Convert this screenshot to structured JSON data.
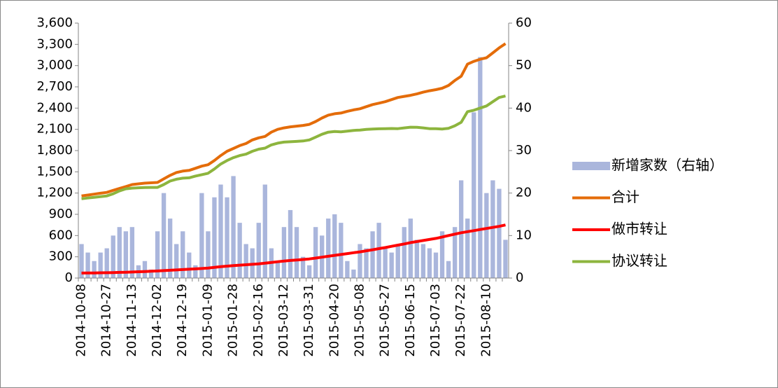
{
  "chart_data": {
    "type": "combo",
    "categories": [
      "2014-10-08",
      null,
      null,
      null,
      "2014-10-27",
      null,
      null,
      null,
      "2014-11-13",
      null,
      null,
      null,
      "2014-12-02",
      null,
      null,
      null,
      "2014-12-19",
      null,
      null,
      null,
      "2015-01-09",
      null,
      null,
      null,
      "2015-01-28",
      null,
      null,
      null,
      "2015-02-16",
      null,
      null,
      null,
      "2015-03-12",
      null,
      null,
      null,
      "2015-03-31",
      null,
      null,
      null,
      "2015-04-20",
      null,
      null,
      null,
      "2015-05-08",
      null,
      null,
      null,
      "2015-05-27",
      null,
      null,
      null,
      "2015-06-15",
      null,
      null,
      null,
      "2015-07-03",
      null,
      null,
      null,
      "2015-07-22",
      null,
      null,
      null,
      "2015-08-10",
      null,
      null,
      null
    ],
    "series": [
      {
        "name": "新增家数（右轴）",
        "type": "bar",
        "axis": "y2",
        "color": "#aab6dc",
        "values": [
          8,
          6,
          4,
          6,
          7,
          10,
          12,
          11,
          12,
          3,
          4,
          2,
          11,
          20,
          14,
          8,
          11,
          6,
          3,
          20,
          11,
          19,
          22,
          19,
          24,
          13,
          8,
          7,
          13,
          22,
          7,
          4,
          12,
          16,
          12,
          5,
          3,
          12,
          10,
          14,
          15,
          13,
          4,
          2,
          8,
          7,
          11,
          13,
          7,
          6,
          8,
          12,
          14,
          9,
          8,
          7,
          6,
          11,
          4,
          12,
          23,
          14,
          39,
          52,
          20,
          23,
          21,
          9
        ]
      },
      {
        "name": "合计",
        "type": "line",
        "color": "#e46c0a",
        "values": [
          1160,
          1172,
          1185,
          1198,
          1210,
          1238,
          1265,
          1292,
          1320,
          1330,
          1340,
          1345,
          1350,
          1400,
          1450,
          1490,
          1510,
          1520,
          1550,
          1580,
          1600,
          1660,
          1730,
          1790,
          1830,
          1870,
          1900,
          1950,
          1980,
          2000,
          2060,
          2100,
          2120,
          2135,
          2145,
          2155,
          2170,
          2210,
          2260,
          2300,
          2320,
          2330,
          2355,
          2375,
          2390,
          2420,
          2450,
          2470,
          2490,
          2520,
          2550,
          2565,
          2580,
          2600,
          2625,
          2645,
          2660,
          2680,
          2720,
          2790,
          2850,
          3020,
          3060,
          3090,
          3110,
          3180,
          3250,
          3310
        ]
      },
      {
        "name": "做市转让",
        "type": "line",
        "color": "#ff0000",
        "values": [
          70,
          71,
          72,
          74,
          75,
          77,
          80,
          82,
          85,
          89,
          92,
          96,
          100,
          105,
          110,
          115,
          120,
          125,
          130,
          135,
          140,
          150,
          160,
          168,
          175,
          182,
          188,
          194,
          200,
          210,
          220,
          230,
          240,
          248,
          255,
          262,
          270,
          282,
          295,
          308,
          320,
          332,
          345,
          358,
          370,
          385,
          400,
          415,
          430,
          448,
          465,
          482,
          500,
          515,
          530,
          545,
          560,
          580,
          600,
          620,
          640,
          655,
          670,
          685,
          700,
          715,
          730,
          750
        ]
      },
      {
        "name": "协议转让",
        "type": "line",
        "color": "#8db53e",
        "values": [
          1120,
          1130,
          1140,
          1150,
          1160,
          1190,
          1230,
          1260,
          1270,
          1275,
          1278,
          1280,
          1280,
          1320,
          1370,
          1395,
          1410,
          1415,
          1440,
          1460,
          1480,
          1540,
          1610,
          1660,
          1700,
          1730,
          1750,
          1790,
          1820,
          1835,
          1880,
          1905,
          1920,
          1925,
          1930,
          1935,
          1950,
          1990,
          2030,
          2060,
          2070,
          2065,
          2075,
          2085,
          2090,
          2100,
          2105,
          2108,
          2110,
          2112,
          2110,
          2120,
          2130,
          2128,
          2120,
          2110,
          2110,
          2105,
          2115,
          2150,
          2200,
          2350,
          2370,
          2400,
          2430,
          2490,
          2550,
          2570
        ]
      }
    ],
    "ylim": [
      0,
      3600
    ],
    "yticks": [
      0,
      300,
      600,
      900,
      {
        "value": 1200,
        "label": "1,200"
      },
      {
        "value": 1500,
        "label": "1,500"
      },
      {
        "value": 1800,
        "label": "1,800"
      },
      {
        "value": 2100,
        "label": "2,100"
      },
      {
        "value": 2400,
        "label": "2,400"
      },
      {
        "value": 2700,
        "label": "2,700"
      },
      {
        "value": 3000,
        "label": "3,000"
      },
      {
        "value": 3300,
        "label": "3,300"
      },
      {
        "value": 3600,
        "label": "3,600"
      }
    ],
    "y2lim": [
      0,
      60
    ],
    "y2ticks": [
      0,
      10,
      20,
      30,
      40,
      50,
      60
    ],
    "legend": "right",
    "grid": false
  }
}
